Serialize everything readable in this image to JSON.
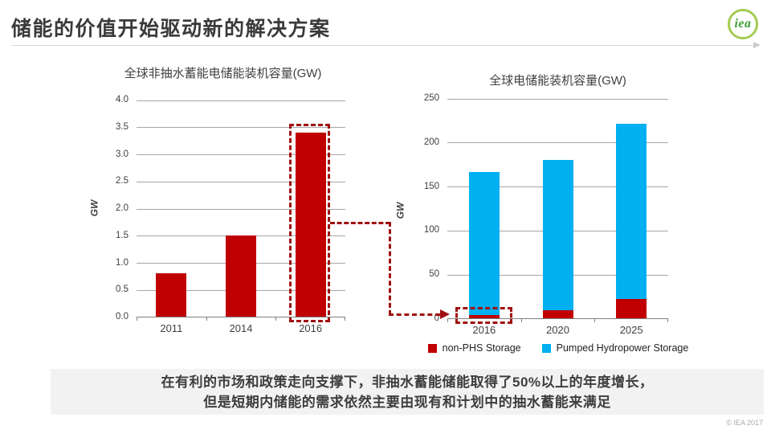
{
  "slide": {
    "title": "储能的价值开始驱动新的解决方案",
    "logo_text": "iea",
    "footer": "© IEA 2017",
    "callout": {
      "line1": "在有利的市场和政策走向支撑下，非抽水蓄能储能取得了50%以上的年度增长，",
      "line2": "但是短期内储能的需求依然主要由现有和计划中的抽水蓄能来满足"
    }
  },
  "colors": {
    "bar_red": "#c00000",
    "bar_blue": "#00b0f0",
    "annotation_dash_red": "#a01010",
    "gridline": "#a6a6a6",
    "callout_bg": "#f2f2f2",
    "logo_green": "#3da135"
  },
  "chart_data": [
    {
      "type": "bar",
      "title": "全球非抽水蓄能电储能装机容量(GW)",
      "ylabel": "GW",
      "xlabel": "",
      "categories": [
        "2011",
        "2014",
        "2016"
      ],
      "values": [
        0.8,
        1.5,
        3.4
      ],
      "bar_color": "#c00000",
      "ylim": [
        0,
        4.0
      ],
      "ytick_step": 0.5,
      "ytick_labels": [
        "0.0",
        "0.5",
        "1.0",
        "1.5",
        "2.0",
        "2.5",
        "3.0",
        "3.5",
        "4.0"
      ],
      "grid": true,
      "annotation": "2016 bar framed by dashed dark-red rectangle linked by dashed arrow to right chart"
    },
    {
      "type": "bar",
      "stacked": true,
      "title": "全球电储能装机容量(GW)",
      "ylabel": "GW",
      "xlabel": "",
      "categories": [
        "2016",
        "2020",
        "2025"
      ],
      "series": [
        {
          "name": "non-PHS Storage",
          "color": "#c00000",
          "values": [
            4,
            9,
            22
          ]
        },
        {
          "name": "Pumped Hydropower Storage",
          "color": "#00b0f0",
          "values": [
            162,
            171,
            199
          ]
        }
      ],
      "totals": [
        166,
        180,
        221
      ],
      "ylim": [
        0,
        250
      ],
      "ytick_step": 50,
      "ytick_labels": [
        "0",
        "50",
        "100",
        "150",
        "200",
        "250"
      ],
      "grid": true,
      "legend_position": "bottom",
      "annotation": "non-PHS bottom segment of 2016 bar framed by dashed dark-red rectangle (arrow target)"
    }
  ]
}
